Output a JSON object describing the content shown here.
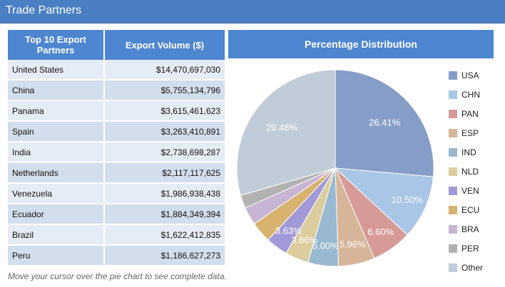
{
  "header": {
    "title": "Trade Partners"
  },
  "table": {
    "col1": "Top 10 Export Partners",
    "col2": "Export Volume ($)",
    "rows": [
      {
        "country": "United States",
        "value": "$14,470,697,030"
      },
      {
        "country": "China",
        "value": "$5,755,134,796"
      },
      {
        "country": "Panama",
        "value": "$3,615,461,623"
      },
      {
        "country": "Spain",
        "value": "$3,263,410,891"
      },
      {
        "country": "India",
        "value": "$2,738,698,287"
      },
      {
        "country": "Netherlands",
        "value": "$2,117,117,625"
      },
      {
        "country": "Venezuela",
        "value": "$1,986,938,438"
      },
      {
        "country": "Ecuador",
        "value": "$1,884,349,394"
      },
      {
        "country": "Brazil",
        "value": "$1,622,412,835"
      },
      {
        "country": "Peru",
        "value": "$1,186,627,273"
      }
    ]
  },
  "footnote": "Move your cursor over the pie chart to see complete data.",
  "chart_data": {
    "type": "pie",
    "title": "Percentage Distribution",
    "slices": [
      {
        "label": "USA",
        "value": 26.41,
        "color": "#869dc8",
        "data_label": "26.41%"
      },
      {
        "label": "CHN",
        "value": 10.5,
        "color": "#a9c6e6",
        "data_label": "10.50%"
      },
      {
        "label": "PAN",
        "value": 6.6,
        "color": "#d69b98",
        "data_label": "6.60%"
      },
      {
        "label": "ESP",
        "value": 5.96,
        "color": "#d7b598",
        "data_label": "5.96%"
      },
      {
        "label": "IND",
        "value": 5.0,
        "color": "#9ab9d1",
        "data_label": "5.00%"
      },
      {
        "label": "NLD",
        "value": 3.86,
        "color": "#dccd9f",
        "data_label": "3.86%"
      },
      {
        "label": "VEN",
        "value": 3.63,
        "color": "#a19ad9",
        "data_label": "3.63%"
      },
      {
        "label": "ECU",
        "value": 3.44,
        "color": "#d8b36f",
        "data_label": ""
      },
      {
        "label": "BRA",
        "value": 2.96,
        "color": "#c8b5d3",
        "data_label": ""
      },
      {
        "label": "PER",
        "value": 2.16,
        "color": "#b2b2b2",
        "data_label": ""
      },
      {
        "label": "Other",
        "value": 29.48,
        "color": "#c0ccd7",
        "data_label": "29.48%"
      }
    ]
  }
}
